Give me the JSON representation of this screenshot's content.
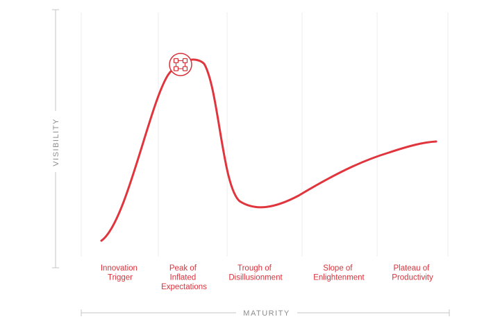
{
  "axes": {
    "y_label": "VISIBILITY",
    "x_label": "MATURITY"
  },
  "phases": [
    {
      "lines": [
        "Innovation",
        "Trigger"
      ]
    },
    {
      "lines": [
        "Peak of",
        "Inflated",
        "Expectations"
      ]
    },
    {
      "lines": [
        "Trough of",
        "Disillusionment"
      ]
    },
    {
      "lines": [
        "Slope of",
        "Enlightenment"
      ]
    },
    {
      "lines": [
        "Plateau of",
        "Productivity"
      ]
    }
  ],
  "marker_icon": "grid-nodes-icon",
  "colors": {
    "curve": "#e0353d",
    "label": "#d8313a",
    "grid": "#ececec",
    "axis": "#c4c4c4",
    "axis_text": "#8c8c8c"
  }
}
